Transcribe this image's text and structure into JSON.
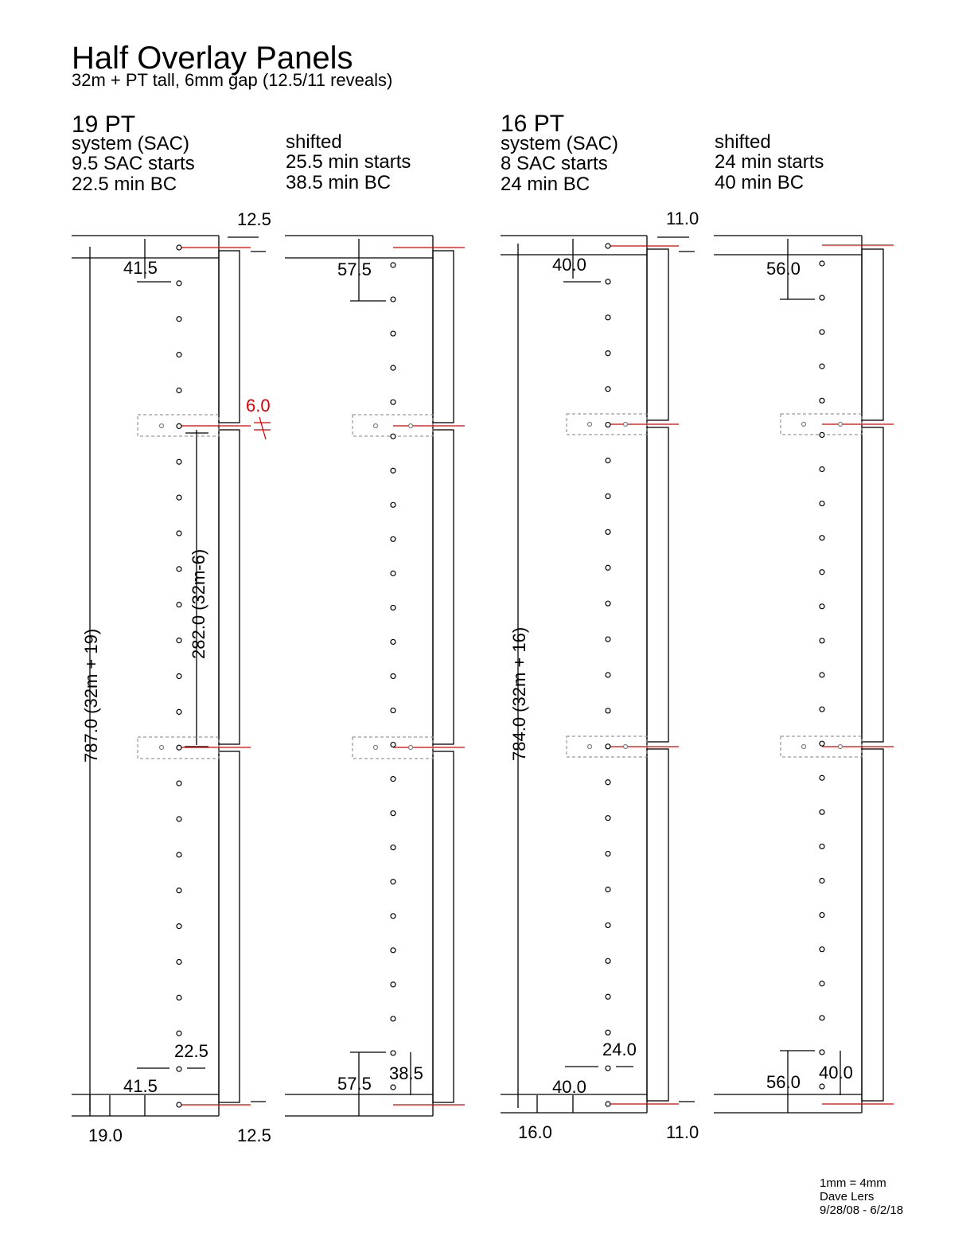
{
  "title": "Half Overlay Panels",
  "subtitle": "32m + PT tall, 6mm gap (12.5/11 reveals)",
  "sections": [
    {
      "heading": "19 PT",
      "system": {
        "lines": [
          "system (SAC)",
          "9.5 SAC starts",
          "22.5 min BC"
        ]
      },
      "shifted": {
        "lines": [
          "shifted",
          "25.5 min starts",
          "38.5 min BC"
        ]
      },
      "dims": {
        "top_reveal": "12.5",
        "bottom_reveal": "12.5",
        "top_start": "41.5",
        "bottom_start": "41.5",
        "shifted_top": "57.5",
        "shifted_bottom": "57.5",
        "min_bc": "22.5",
        "shifted_bc": "38.5",
        "gap": "6.0",
        "spacing": "282.0 (32m-6)",
        "total": "787.0 (32m + 19)",
        "pt": "19.0"
      }
    },
    {
      "heading": "16 PT",
      "system": {
        "lines": [
          "system (SAC)",
          "8 SAC starts",
          "24 min BC"
        ]
      },
      "shifted": {
        "lines": [
          "shifted",
          "24 min starts",
          "40 min BC"
        ]
      },
      "dims": {
        "top_reveal": "11.0",
        "bottom_reveal": "11.0",
        "top_start": "40.0",
        "bottom_start": "40.0",
        "shifted_top": "56.0",
        "shifted_bottom": "56.0",
        "min_bc": "24.0",
        "shifted_bc": "40.0",
        "total": "784.0 (32m + 16)",
        "pt": "16.0"
      }
    }
  ],
  "footer": {
    "lines": [
      "1mm = 4mm",
      "Dave Lers",
      "9/28/08 - 6/2/18"
    ]
  },
  "colors": {
    "line": "#000000",
    "accent": "#e00000",
    "hinge": "#808080"
  },
  "hole_rows": 24
}
